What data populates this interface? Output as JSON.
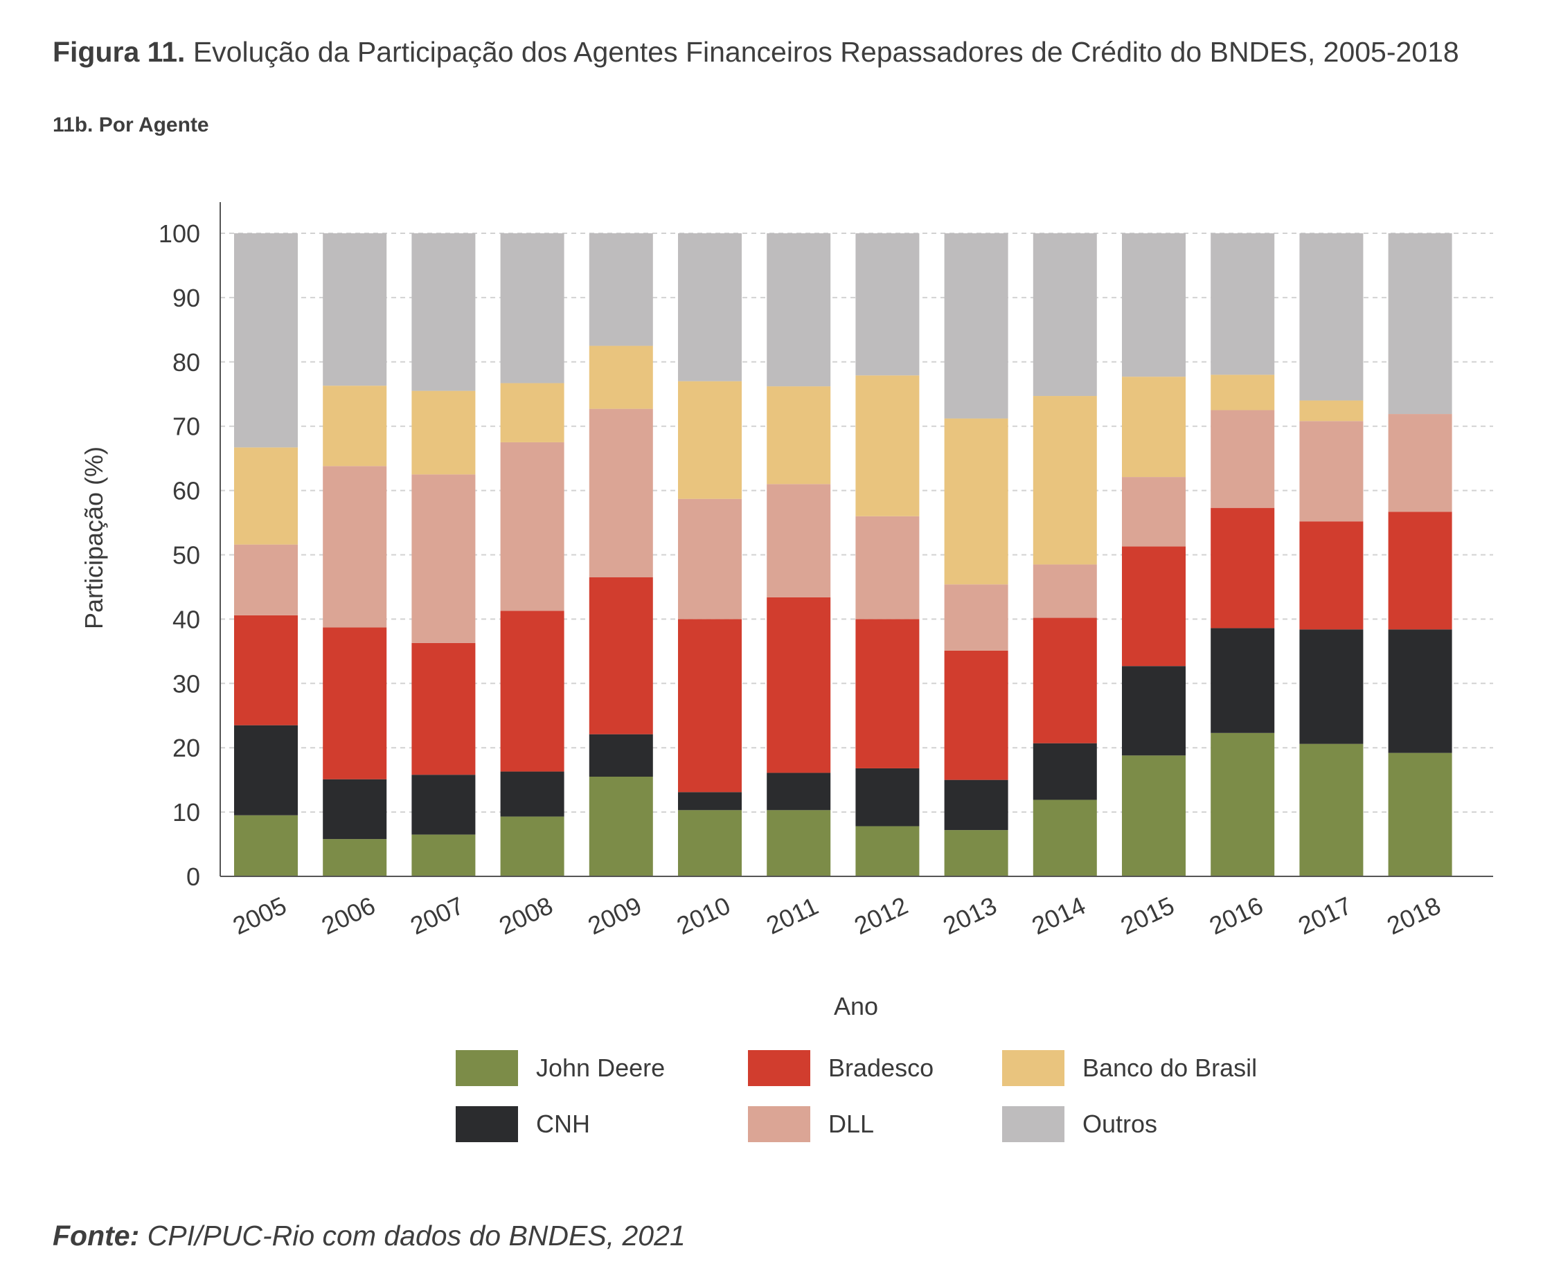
{
  "figure": {
    "label": "Figura 11.",
    "title": "Evolução da Participação dos Agentes Financeiros Repassadores de Crédito do BNDES, 2005-2018",
    "subtitle": "11b. Por Agente"
  },
  "source": {
    "label": "Fonte:",
    "text": "CPI/PUC-Rio com dados do BNDES, 2021"
  },
  "chart_data": {
    "type": "bar",
    "stacked": true,
    "xlabel": "Ano",
    "ylabel": "Participação (%)",
    "ylim": [
      0,
      100
    ],
    "yticks": [
      0,
      10,
      20,
      30,
      40,
      50,
      60,
      70,
      80,
      90,
      100
    ],
    "grid": true,
    "legend_position": "bottom",
    "categories": [
      "2005",
      "2006",
      "2007",
      "2008",
      "2009",
      "2010",
      "2011",
      "2012",
      "2013",
      "2014",
      "2015",
      "2016",
      "2017",
      "2018"
    ],
    "series": [
      {
        "name": "John Deere",
        "color": "#7c8c48",
        "values": [
          9.5,
          5.8,
          6.5,
          9.3,
          15.5,
          10.3,
          10.3,
          7.8,
          7.2,
          11.9,
          18.8,
          22.3,
          20.6,
          19.2
        ]
      },
      {
        "name": "CNH",
        "color": "#2b2c2e",
        "values": [
          14.0,
          9.3,
          9.3,
          7.0,
          6.6,
          2.8,
          5.8,
          9.0,
          7.8,
          8.8,
          13.9,
          16.3,
          17.8,
          19.2
        ]
      },
      {
        "name": "Bradesco",
        "color": "#d13d2e",
        "values": [
          17.1,
          23.6,
          20.5,
          25.0,
          24.4,
          26.9,
          27.3,
          23.2,
          20.1,
          19.5,
          18.6,
          18.7,
          16.8,
          18.3
        ]
      },
      {
        "name": "DLL",
        "color": "#dba595",
        "values": [
          11.0,
          25.1,
          26.2,
          26.2,
          26.2,
          18.7,
          17.6,
          16.0,
          10.3,
          8.3,
          10.8,
          15.2,
          15.6,
          15.2
        ]
      },
      {
        "name": "Banco do Brasil",
        "color": "#e9c47e",
        "values": [
          15.1,
          12.5,
          13.0,
          9.2,
          9.8,
          18.3,
          15.2,
          21.9,
          25.8,
          26.2,
          15.6,
          5.5,
          3.2,
          0.0
        ]
      },
      {
        "name": "Outros",
        "color": "#bebcbd",
        "values": [
          33.3,
          23.7,
          24.5,
          23.3,
          17.5,
          23.0,
          23.8,
          22.1,
          28.8,
          25.3,
          22.3,
          22.0,
          26.0,
          28.1
        ]
      }
    ]
  }
}
